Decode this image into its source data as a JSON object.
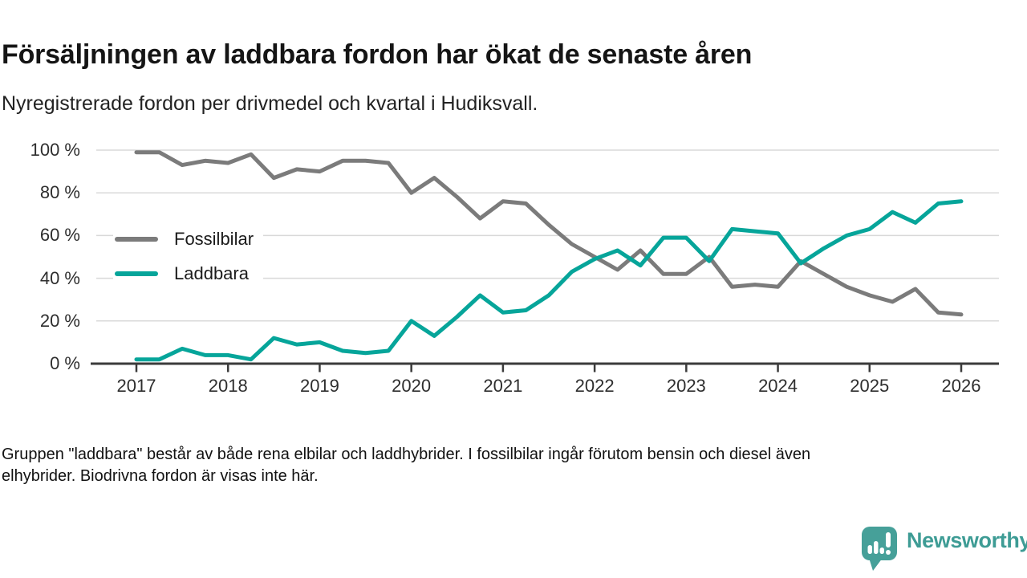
{
  "header": {
    "title": "Försäljningen av laddbara fordon har ökat de senaste åren",
    "subtitle": "Nyregistrerade fordon per drivmedel och kvartal i Hudiksvall."
  },
  "chart_data": {
    "type": "line",
    "title": "Försäljningen av laddbara fordon har ökat de senaste åren",
    "subtitle": "Nyregistrerade fordon per drivmedel och kvartal i Hudiksvall.",
    "xlabel": "",
    "ylabel": "",
    "ylim": [
      0,
      100
    ],
    "grid": "horizontal",
    "legend_position": "inside-left",
    "y_ticks": [
      0,
      20,
      40,
      60,
      80,
      100
    ],
    "y_tick_labels": [
      "0 %",
      "20 %",
      "40 %",
      "60 %",
      "80 %",
      "100 %"
    ],
    "x_tick_labels": [
      "2017",
      "2018",
      "2019",
      "2020",
      "2021",
      "2022",
      "2023",
      "2024",
      "2025",
      "2026"
    ],
    "categories": [
      "2017 Q1",
      "2017 Q2",
      "2017 Q3",
      "2017 Q4",
      "2018 Q1",
      "2018 Q2",
      "2018 Q3",
      "2018 Q4",
      "2019 Q1",
      "2019 Q2",
      "2019 Q3",
      "2019 Q4",
      "2020 Q1",
      "2020 Q2",
      "2020 Q3",
      "2020 Q4",
      "2021 Q1",
      "2021 Q2",
      "2021 Q3",
      "2021 Q4",
      "2022 Q1",
      "2022 Q2",
      "2022 Q3",
      "2022 Q4",
      "2023 Q1",
      "2023 Q2",
      "2023 Q3",
      "2023 Q4",
      "2024 Q1",
      "2024 Q2",
      "2024 Q3",
      "2024 Q4",
      "2025 Q1",
      "2025 Q2",
      "2025 Q3",
      "2025 Q4",
      "2026 Q1"
    ],
    "series": [
      {
        "name": "Fossilbilar",
        "color": "#7b7b7b",
        "values": [
          99,
          99,
          93,
          95,
          94,
          98,
          87,
          91,
          90,
          95,
          95,
          94,
          80,
          87,
          78,
          68,
          76,
          75,
          65,
          56,
          50,
          44,
          53,
          42,
          42,
          50,
          36,
          37,
          36,
          48,
          42,
          36,
          32,
          29,
          35,
          24,
          23
        ]
      },
      {
        "name": "Laddbara",
        "color": "#06a59a",
        "values": [
          2,
          2,
          7,
          4,
          4,
          2,
          12,
          9,
          10,
          6,
          5,
          6,
          20,
          13,
          22,
          32,
          24,
          25,
          32,
          43,
          49,
          53,
          46,
          59,
          59,
          48,
          63,
          62,
          61,
          47,
          54,
          60,
          63,
          71,
          66,
          75,
          76
        ]
      }
    ]
  },
  "footnote": {
    "line1": "Gruppen \"laddbara\" består av både rena elbilar och laddhybrider. I fossilbilar ingår förutom bensin och diesel även",
    "line2": "elhybrider. Biodrivna fordon är visas inte här."
  },
  "branding": {
    "logo_text": "Newsworthy",
    "logo_color": "#46a099",
    "logo_text_color": "#3e9c95"
  }
}
